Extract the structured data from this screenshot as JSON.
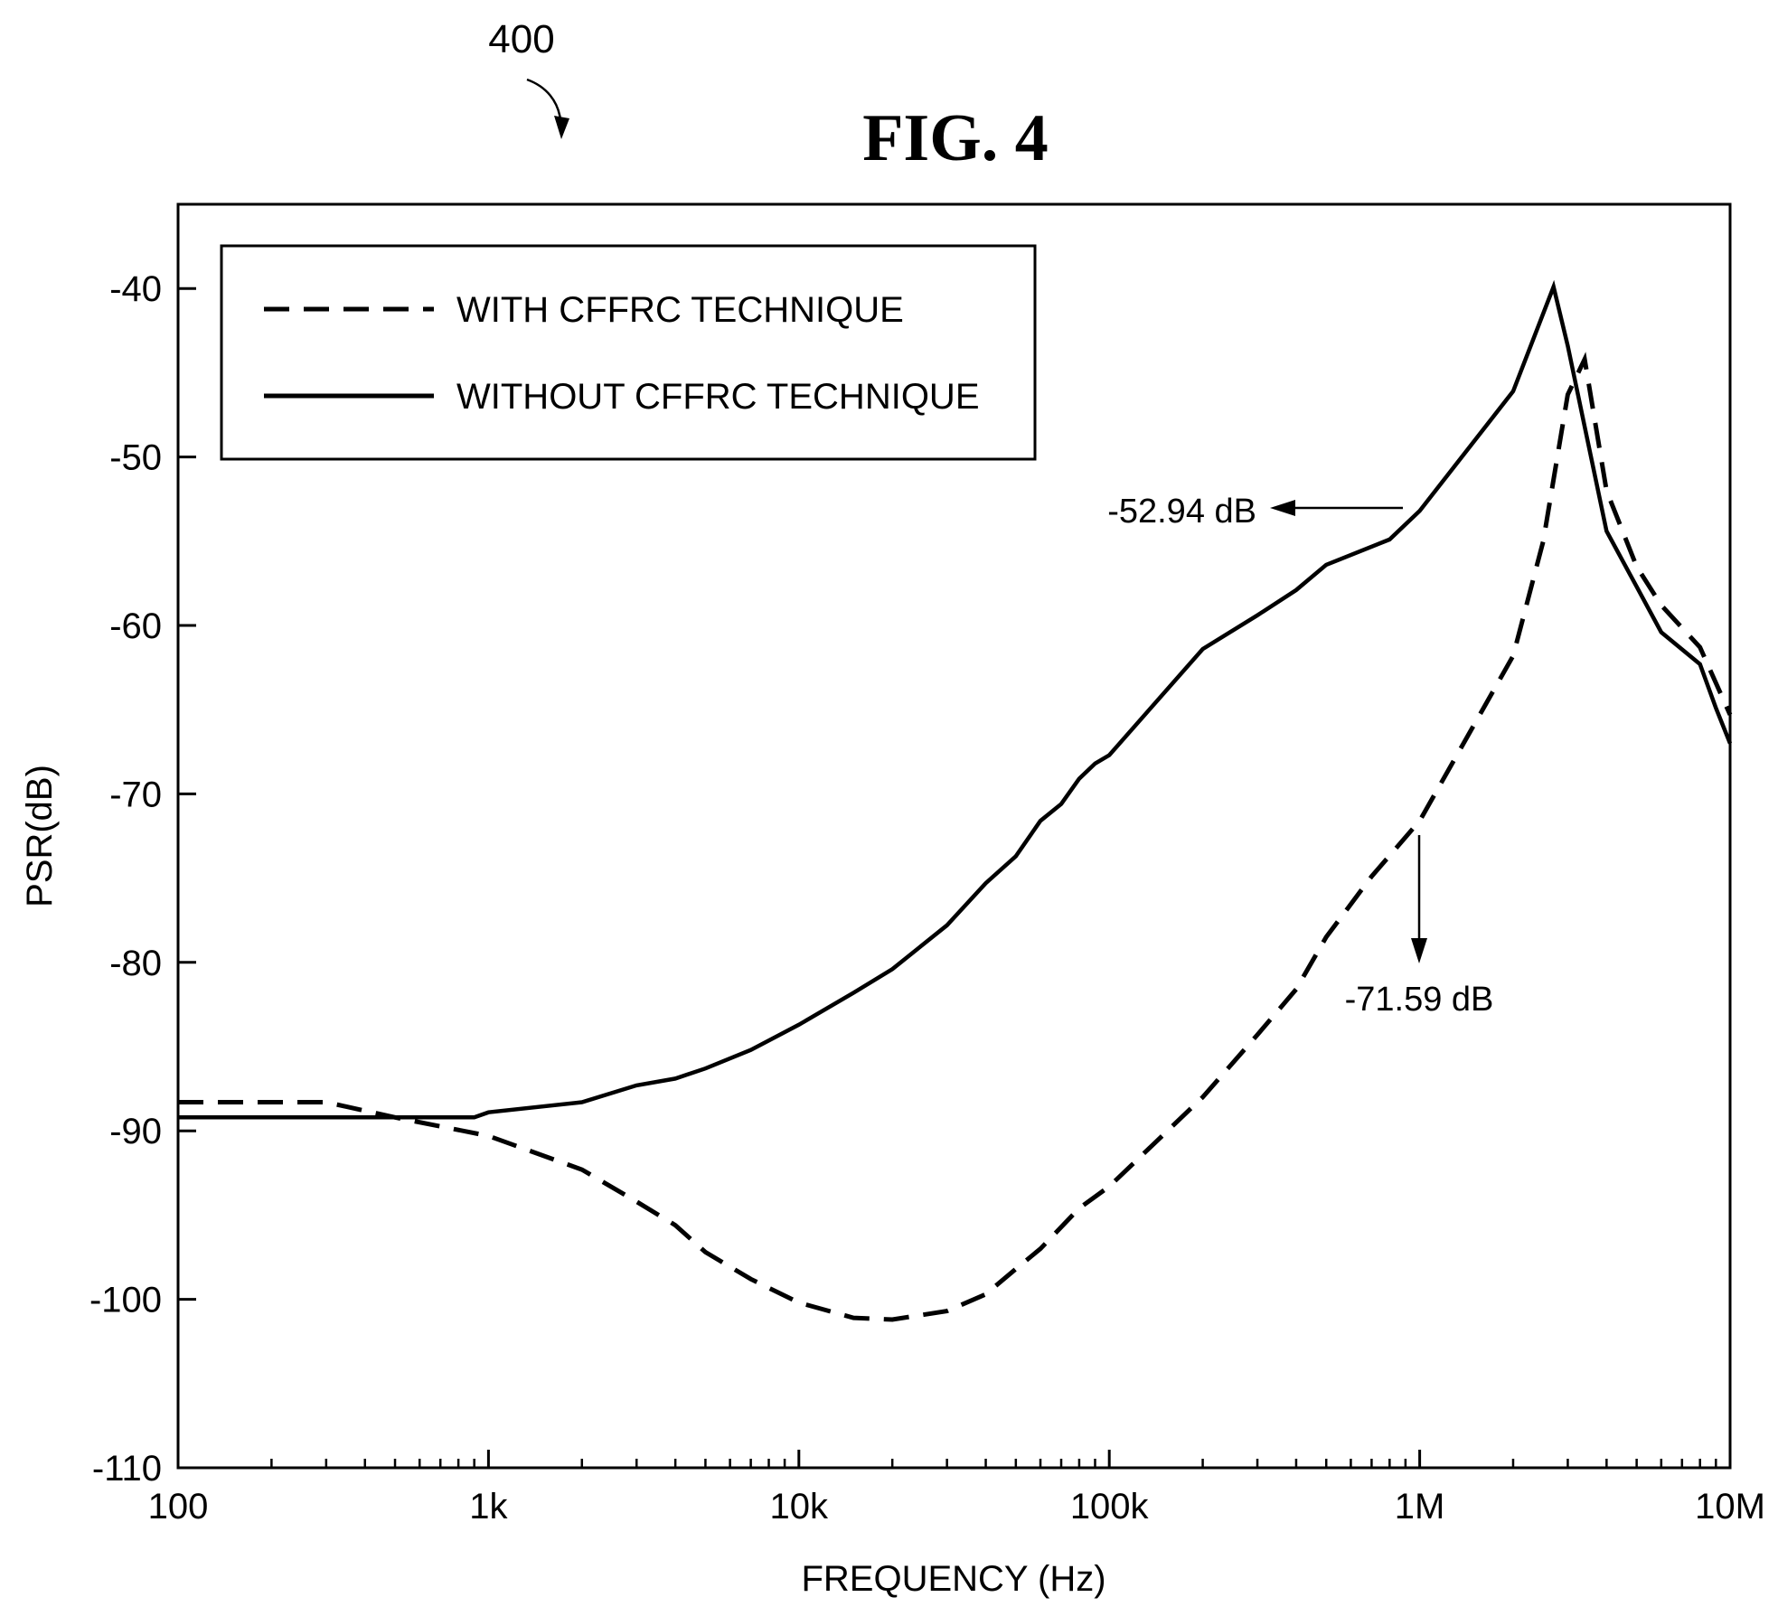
{
  "ref_number": "400",
  "fig_title": "FIG. 4",
  "chart_data": {
    "type": "line",
    "xscale": "log",
    "xlim": [
      100,
      10000000
    ],
    "ylim": [
      -110,
      -35
    ],
    "xticks": [
      100,
      1000,
      10000,
      100000,
      1000000,
      10000000
    ],
    "xtick_labels": [
      "100",
      "1k",
      "10k",
      "100k",
      "1M",
      "10M"
    ],
    "yticks": [
      -40,
      -50,
      -60,
      -70,
      -80,
      -90,
      -100,
      -110
    ],
    "ytick_labels": [
      "-40",
      "-50",
      "-60",
      "-70",
      "-80",
      "-90",
      "-100",
      "-110"
    ],
    "xlabel": "FREQUENCY (Hz)",
    "ylabel": "PSR(dB)",
    "grid": false,
    "legend": {
      "placement": "top-left",
      "entries": [
        "WITH CFFRC TECHNIQUE",
        "WITHOUT CFFRC TECHNIQUE"
      ]
    },
    "series": [
      {
        "name": "WITH CFFRC TECHNIQUE",
        "style": "dashed",
        "x": [
          100,
          300,
          500,
          1000,
          2000,
          3000,
          4000,
          5000,
          7000,
          10000,
          15000,
          20000,
          30000,
          40000,
          50000,
          60000,
          80000,
          100000,
          200000,
          300000,
          400000,
          500000,
          700000,
          1000000,
          2000000,
          2500000,
          3000000,
          3400000,
          4000000,
          5000000,
          6000000,
          8000000,
          10000000
        ],
        "y": [
          -88.3,
          -88.3,
          -89.2,
          -90.3,
          -92.3,
          -94.2,
          -95.6,
          -97.2,
          -98.8,
          -100.2,
          -101.1,
          -101.2,
          -100.7,
          -99.7,
          -98.2,
          -97,
          -94.6,
          -93.3,
          -88,
          -84.3,
          -81.6,
          -78.5,
          -74.9,
          -71.6,
          -61.8,
          -55,
          -46.3,
          -44.2,
          -52,
          -56.5,
          -58.8,
          -61.3,
          -65.3
        ]
      },
      {
        "name": "WITHOUT CFFRC TECHNIQUE",
        "style": "solid",
        "x": [
          100,
          300,
          900,
          1000,
          2000,
          3000,
          4000,
          5000,
          7000,
          10000,
          15000,
          20000,
          30000,
          40000,
          50000,
          60000,
          70000,
          80000,
          90000,
          100000,
          200000,
          300000,
          400000,
          500000,
          800000,
          1000000,
          2000000,
          2700000,
          3000000,
          4000000,
          5000000,
          6000000,
          8000000,
          9000000,
          10000000
        ],
        "y": [
          -89.2,
          -89.2,
          -89.2,
          -88.9,
          -88.3,
          -87.3,
          -86.9,
          -86.3,
          -85.2,
          -83.7,
          -81.8,
          -80.4,
          -77.8,
          -75.3,
          -73.7,
          -71.6,
          -70.6,
          -69.1,
          -68.2,
          -67.7,
          -61.4,
          -59.4,
          -57.9,
          -56.4,
          -54.9,
          -53.2,
          -46.1,
          -39.9,
          -43.4,
          -54.4,
          -57.7,
          -60.4,
          -62.3,
          -64.9,
          -67
        ]
      }
    ],
    "annotations": [
      {
        "text": "-52.94 dB",
        "target": [
          1000000,
          -52.94
        ],
        "arrow": "left"
      },
      {
        "text": "-71.59 dB",
        "target": [
          1000000,
          -71.59
        ],
        "arrow": "down"
      }
    ]
  }
}
